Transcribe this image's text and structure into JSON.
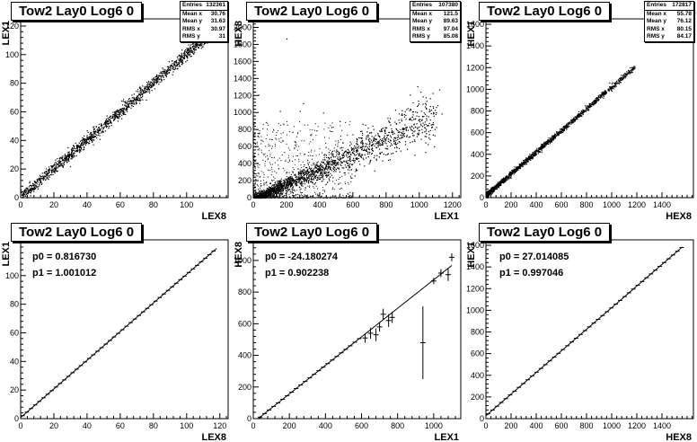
{
  "canvas_title": "Tow2 Lay0 Log6 0",
  "chart_data": [
    {
      "type": "scatter",
      "title": "Tow2 Lay0 Log6 0",
      "xlabel": "LEX8",
      "ylabel": "LEX1",
      "xlim": [
        0,
        125
      ],
      "ylim": [
        0,
        125
      ],
      "xticks": [
        0,
        20,
        40,
        60,
        80,
        100
      ],
      "yticks": [
        0,
        20,
        40,
        60,
        80,
        100,
        120
      ],
      "stats": [
        [
          "Entries",
          "132361"
        ],
        [
          "Mean x",
          "30.76"
        ],
        [
          "Mean y",
          "31.63"
        ],
        [
          "RMS x",
          "30.97"
        ],
        [
          "RMS y",
          "31"
        ]
      ],
      "band": {
        "slope": 1.0,
        "intercept": 0.8,
        "x_range": [
          0,
          118
        ],
        "width": 2.0
      },
      "outliers": [],
      "cloud": null
    },
    {
      "type": "scatter",
      "title": "Tow2 Lay0 Log6 0",
      "xlabel": "LEX1",
      "ylabel": "HEX8",
      "xlim": [
        0,
        1250
      ],
      "ylim": [
        0,
        2100
      ],
      "xticks": [
        0,
        200,
        400,
        600,
        800,
        1000,
        1200
      ],
      "yticks": [
        0,
        200,
        400,
        600,
        800,
        1000,
        1200,
        1400,
        1600,
        1800,
        2000
      ],
      "stats": [
        [
          "Entries",
          "107380"
        ],
        [
          "Mean x",
          "121.5"
        ],
        [
          "Mean y",
          "89.63"
        ],
        [
          "RMS x",
          "97.04"
        ],
        [
          "RMS y",
          "85.08"
        ]
      ],
      "band": {
        "slope": 0.9,
        "intercept": -20,
        "x_range": [
          0,
          1100
        ],
        "width": 45
      },
      "outliers": [
        [
          300,
          1110
        ],
        [
          280,
          1020
        ],
        [
          420,
          1000
        ],
        [
          470,
          830
        ],
        [
          1120,
          1270
        ],
        [
          1080,
          1230
        ],
        [
          1020,
          1190
        ],
        [
          720,
          670
        ],
        [
          200,
          1870
        ],
        [
          160,
          1020
        ],
        [
          380,
          790
        ],
        [
          30,
          1210
        ],
        [
          650,
          700
        ],
        [
          900,
          780
        ],
        [
          520,
          900
        ]
      ],
      "cloud": {
        "x_range": [
          0,
          600
        ],
        "y_range": [
          0,
          900
        ],
        "count": 700
      }
    },
    {
      "type": "scatter",
      "title": "Tow2 Lay0 Log6 0",
      "xlabel": "HEX8",
      "ylabel": "HEX1",
      "xlim": [
        0,
        1650
      ],
      "ylim": [
        0,
        1650
      ],
      "xticks": [
        0,
        200,
        400,
        600,
        800,
        1000,
        1200,
        1400
      ],
      "yticks": [
        0,
        200,
        400,
        600,
        800,
        1000,
        1200,
        1400,
        1600
      ],
      "stats": [
        [
          "Entries",
          "172817"
        ],
        [
          "Mean x",
          "55.78"
        ],
        [
          "Mean y",
          "76.12"
        ],
        [
          "RMS x",
          "80.15"
        ],
        [
          "RMS y",
          "84.17"
        ]
      ],
      "band": {
        "slope": 1.0,
        "intercept": 27,
        "x_range": [
          0,
          1180
        ],
        "width": 12
      },
      "outliers": [],
      "cloud": null
    },
    {
      "type": "line",
      "title": "Tow2 Lay0 Log6 0",
      "xlabel": "LEX8",
      "ylabel": "LEX1",
      "xlim": [
        0,
        125
      ],
      "ylim": [
        0,
        125
      ],
      "xticks": [
        0,
        20,
        40,
        60,
        80,
        100,
        120
      ],
      "yticks": [
        0,
        20,
        40,
        60,
        80,
        100
      ],
      "fit": {
        "p0_label": "p0 = 0.816730",
        "p1_label": "p1 = 1.001012",
        "p0": 0.81673,
        "p1": 1.001012
      },
      "profile": {
        "x_range": [
          0,
          118
        ],
        "step": 2.5
      },
      "error_points": []
    },
    {
      "type": "line",
      "title": "Tow2 Lay0 Log6 0",
      "xlabel": "LEX1",
      "ylabel": "HEX8",
      "xlim": [
        0,
        1150
      ],
      "ylim": [
        0,
        1130
      ],
      "xticks": [
        0,
        200,
        400,
        600,
        800,
        1000
      ],
      "yticks": [
        0,
        200,
        400,
        600,
        800,
        1000
      ],
      "fit": {
        "p0_label": "p0 = -24.180274",
        "p1_label": "p1 = 0.902238",
        "p0": -24.180274,
        "p1": 0.902238
      },
      "profile": {
        "x_range": [
          0,
          600
        ],
        "step": 25
      },
      "error_points": [
        [
          620,
          510,
          30
        ],
        [
          650,
          540,
          35
        ],
        [
          680,
          530,
          40
        ],
        [
          700,
          580,
          30
        ],
        [
          720,
          660,
          35
        ],
        [
          750,
          620,
          40
        ],
        [
          770,
          640,
          35
        ],
        [
          940,
          480,
          230
        ],
        [
          1000,
          870,
          20
        ],
        [
          1040,
          920,
          25
        ],
        [
          1080,
          910,
          40
        ],
        [
          1100,
          1020,
          25
        ]
      ]
    },
    {
      "type": "line",
      "title": "Tow2 Lay0 Log6 0",
      "xlabel": "HEX8",
      "ylabel": "HEX1",
      "xlim": [
        0,
        1650
      ],
      "ylim": [
        0,
        1650
      ],
      "xticks": [
        0,
        200,
        400,
        600,
        800,
        1000,
        1200,
        1400
      ],
      "yticks": [
        0,
        200,
        400,
        600,
        800,
        1000,
        1200,
        1400,
        1600
      ],
      "fit": {
        "p0_label": "p0 = 27.014085",
        "p1_label": "p1 = 0.997046",
        "p0": 27.014085,
        "p1": 0.997046
      },
      "profile": {
        "x_range": [
          0,
          1560
        ],
        "step": 35
      },
      "error_points": []
    }
  ]
}
